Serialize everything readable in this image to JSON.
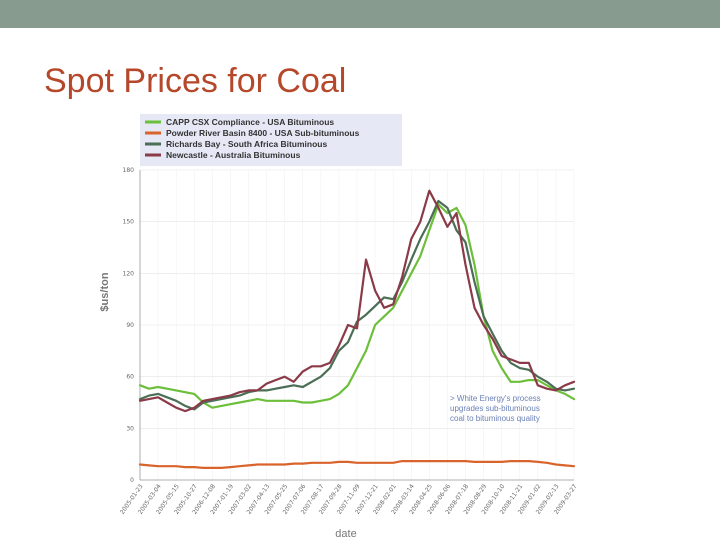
{
  "slide": {
    "title": "Spot Prices for Coal",
    "top_bar_color": "#879c8e",
    "title_color": "#b5482a"
  },
  "chart_data": {
    "type": "line",
    "title": "",
    "xlabel": "date",
    "ylabel": "$us/ton",
    "ylim": [
      0,
      180
    ],
    "yticks": [
      0,
      30,
      60,
      90,
      120,
      150,
      180
    ],
    "grid": true,
    "legend_position": "top-left",
    "x_tick_labels": [
      "2005-01-23",
      "2005-03-04",
      "2005-05-15",
      "2005-10-27",
      "2006-12-08",
      "2007-01-19",
      "2007-03-02",
      "2007-04-13",
      "2007-05-25",
      "2007-07-06",
      "2007-08-17",
      "2007-09-28",
      "2007-11-09",
      "2007-12-21",
      "2008-02-01",
      "2008-03-14",
      "2008-04-25",
      "2008-06-06",
      "2008-07-18",
      "2008-08-29",
      "2008-10-10",
      "2008-11-21",
      "2009-01-02",
      "2009-02-13",
      "2009-03-27"
    ],
    "x": [
      0,
      1,
      2,
      3,
      4,
      5,
      6,
      7,
      8,
      9,
      10,
      11,
      12,
      13,
      14,
      15,
      16,
      17,
      18,
      19,
      20,
      21,
      22,
      23,
      24,
      25,
      26,
      27,
      28,
      29,
      30,
      31,
      32,
      33,
      34,
      35,
      36,
      37,
      38,
      39,
      40,
      41,
      42,
      43,
      44,
      45,
      46,
      47,
      48
    ],
    "series": [
      {
        "name": "CAPP CSX Compliance - USA Bituminous",
        "color": "#6cbf3a",
        "values": [
          55,
          53,
          54,
          53,
          52,
          51,
          50,
          45,
          42,
          43,
          44,
          45,
          46,
          47,
          46,
          46,
          46,
          46,
          45,
          45,
          46,
          47,
          50,
          55,
          65,
          75,
          90,
          95,
          100,
          110,
          120,
          130,
          145,
          160,
          155,
          158,
          148,
          125,
          95,
          75,
          65,
          57,
          57,
          58,
          58,
          55,
          52,
          50,
          47
        ]
      },
      {
        "name": "Powder River Basin 8400 - USA Sub-bituminous",
        "color": "#d9642b",
        "values": [
          9,
          8.5,
          8,
          8,
          8,
          7.5,
          7.5,
          7,
          7,
          7,
          7.5,
          8,
          8.5,
          9,
          9,
          9,
          9,
          9.5,
          9.5,
          10,
          10,
          10,
          10.5,
          10.5,
          10,
          10,
          10,
          10,
          10,
          11,
          11,
          11,
          11,
          11,
          11,
          11,
          11,
          10.5,
          10.5,
          10.5,
          10.5,
          11,
          11,
          11,
          10.5,
          10,
          9,
          8.5,
          8
        ]
      },
      {
        "name": "Richards Bay - South Africa Bituminous",
        "color": "#4b6e56",
        "values": [
          47,
          49,
          50,
          48,
          46,
          43,
          41,
          45,
          46,
          47,
          48,
          49,
          51,
          52,
          52,
          53,
          54,
          55,
          54,
          57,
          60,
          65,
          75,
          80,
          92,
          96,
          101,
          106,
          105,
          115,
          128,
          140,
          150,
          162,
          158,
          145,
          138,
          115,
          95,
          85,
          75,
          68,
          65,
          64,
          60,
          57,
          53,
          52,
          53
        ]
      },
      {
        "name": "Newcastle - Australia Bituminous",
        "color": "#8b3a48",
        "values": [
          46,
          47,
          48,
          45,
          42,
          40,
          42,
          46,
          47,
          48,
          49,
          51,
          52,
          52,
          56,
          58,
          60,
          57,
          63,
          66,
          66,
          68,
          78,
          90,
          88,
          128,
          110,
          100,
          102,
          118,
          140,
          150,
          168,
          158,
          147,
          155,
          125,
          100,
          90,
          82,
          72,
          70,
          68,
          68,
          55,
          53,
          52,
          55,
          57
        ]
      }
    ],
    "annotation": [
      "> White Energy's process",
      "upgrades sub-bituminous",
      "coal to bituminous quality"
    ]
  }
}
